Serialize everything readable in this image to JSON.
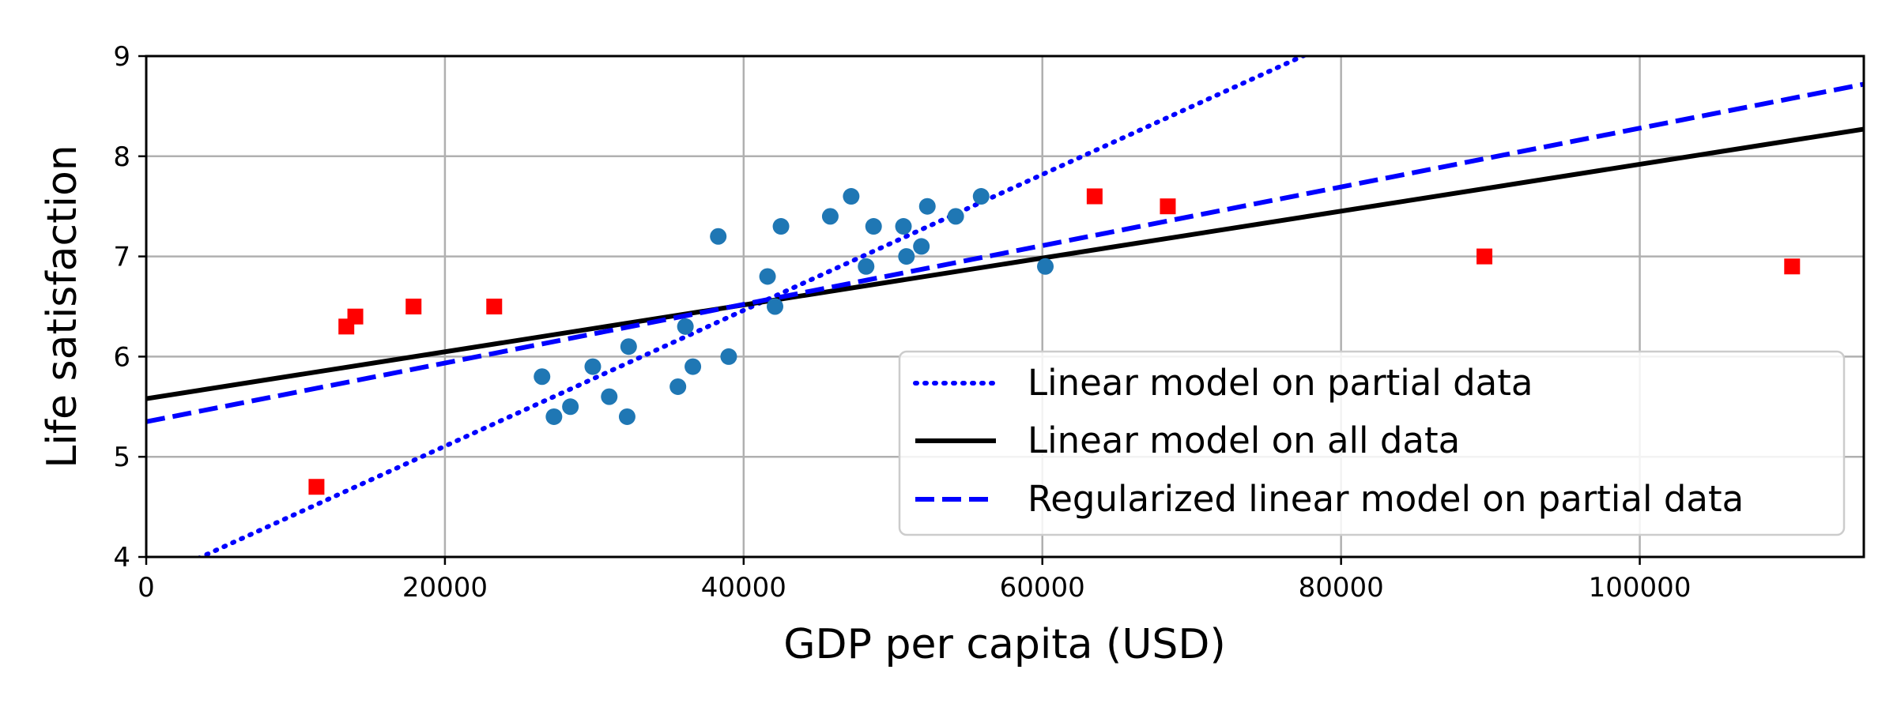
{
  "chart_data": {
    "type": "scatter",
    "title": "",
    "xlabel": "GDP per capita (USD)",
    "ylabel": "Life satisfaction",
    "xlim": [
      0,
      115000
    ],
    "ylim": [
      4,
      9
    ],
    "xticks": [
      0,
      20000,
      40000,
      60000,
      80000,
      100000
    ],
    "xtick_labels": [
      "0",
      "20000",
      "40000",
      "60000",
      "80000",
      "100000"
    ],
    "yticks": [
      4,
      5,
      6,
      7,
      8,
      9
    ],
    "ytick_labels": [
      "4",
      "5",
      "6",
      "7",
      "8",
      "9"
    ],
    "grid": true,
    "legend_position": "lower-right",
    "scatter_series": [
      {
        "marker": "circle",
        "color": "#1f77b4",
        "points": [
          [
            26500,
            5.8
          ],
          [
            27300,
            5.4
          ],
          [
            28400,
            5.5
          ],
          [
            29900,
            5.9
          ],
          [
            31000,
            5.6
          ],
          [
            32200,
            5.4
          ],
          [
            32300,
            6.1
          ],
          [
            35600,
            5.7
          ],
          [
            36100,
            6.3
          ],
          [
            36600,
            5.9
          ],
          [
            38300,
            7.2
          ],
          [
            39000,
            6.0
          ],
          [
            41600,
            6.8
          ],
          [
            42100,
            6.5
          ],
          [
            42500,
            7.3
          ],
          [
            45800,
            7.4
          ],
          [
            47200,
            7.6
          ],
          [
            48200,
            6.9
          ],
          [
            48700,
            7.3
          ],
          [
            50700,
            7.3
          ],
          [
            50900,
            7.0
          ],
          [
            51900,
            7.1
          ],
          [
            52300,
            7.5
          ],
          [
            54200,
            7.4
          ],
          [
            55900,
            7.6
          ],
          [
            60200,
            6.9
          ]
        ]
      },
      {
        "marker": "square",
        "color": "#ff0000",
        "points": [
          [
            11400,
            4.7
          ],
          [
            13400,
            6.3
          ],
          [
            14000,
            6.4
          ],
          [
            17900,
            6.5
          ],
          [
            23300,
            6.5
          ],
          [
            63500,
            7.6
          ],
          [
            68400,
            7.5
          ],
          [
            89600,
            7.0
          ],
          [
            110200,
            6.9
          ]
        ]
      }
    ],
    "lines": [
      {
        "name": "Linear model on partial data",
        "style": "dotted",
        "color": "#0000ff",
        "intercept": 3.75,
        "slope": 6.78e-05
      },
      {
        "name": "Linear model on all data",
        "style": "solid",
        "color": "#000000",
        "intercept": 5.58,
        "slope": 2.34e-05
      },
      {
        "name": "Regularized linear model on partial data",
        "style": "dashed",
        "color": "#0000ff",
        "intercept": 5.35,
        "slope": 2.93e-05
      }
    ],
    "legend": [
      "Linear model on partial data",
      "Linear model on all data",
      "Regularized linear model on partial data"
    ]
  }
}
